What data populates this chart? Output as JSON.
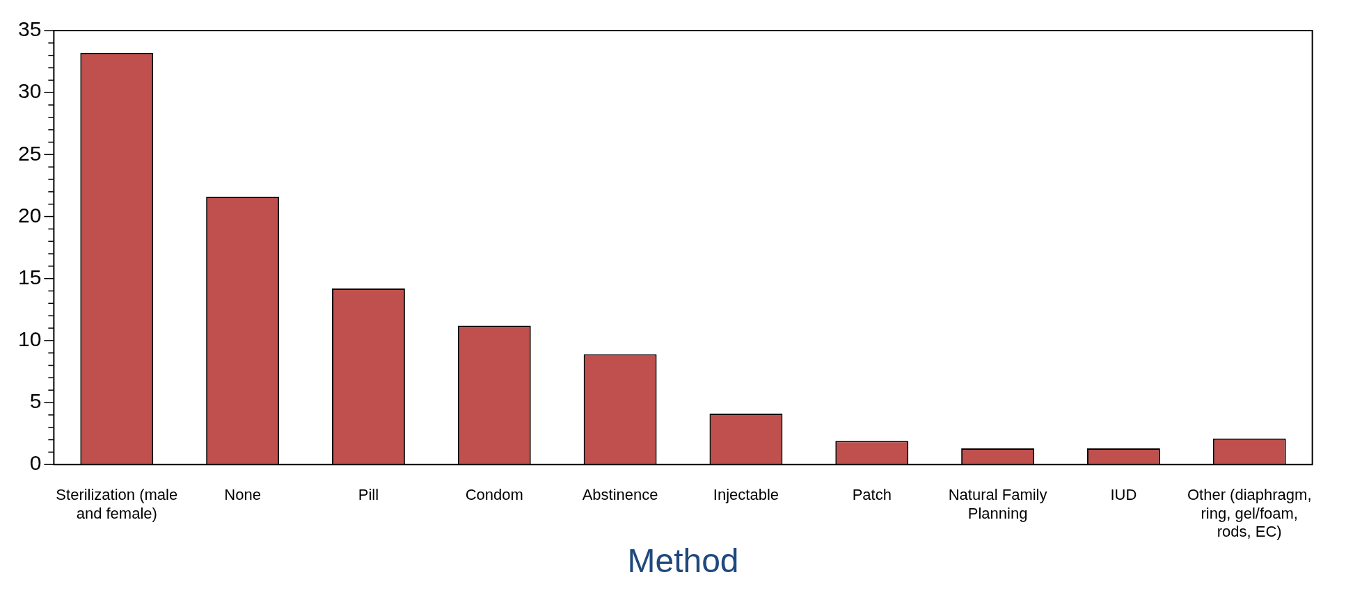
{
  "chart_data": {
    "type": "bar",
    "xlabel": "Method",
    "categories": [
      "Sterilization (male and female)",
      "None",
      "Pill",
      "Condom",
      "Abstinence",
      "Injectable",
      "Patch",
      "Natural Family Planning",
      "IUD",
      "Other (diaphragm, ring, gel/foam, rods, EC)"
    ],
    "values": [
      33.2,
      21.6,
      14.2,
      11.2,
      8.9,
      4.1,
      1.9,
      1.3,
      1.3,
      2.1
    ],
    "color": "#c0504d",
    "ylim": [
      0,
      35
    ],
    "yticks": [
      0,
      5,
      10,
      15,
      20,
      25,
      30,
      35
    ],
    "grid": false,
    "legend": false
  }
}
